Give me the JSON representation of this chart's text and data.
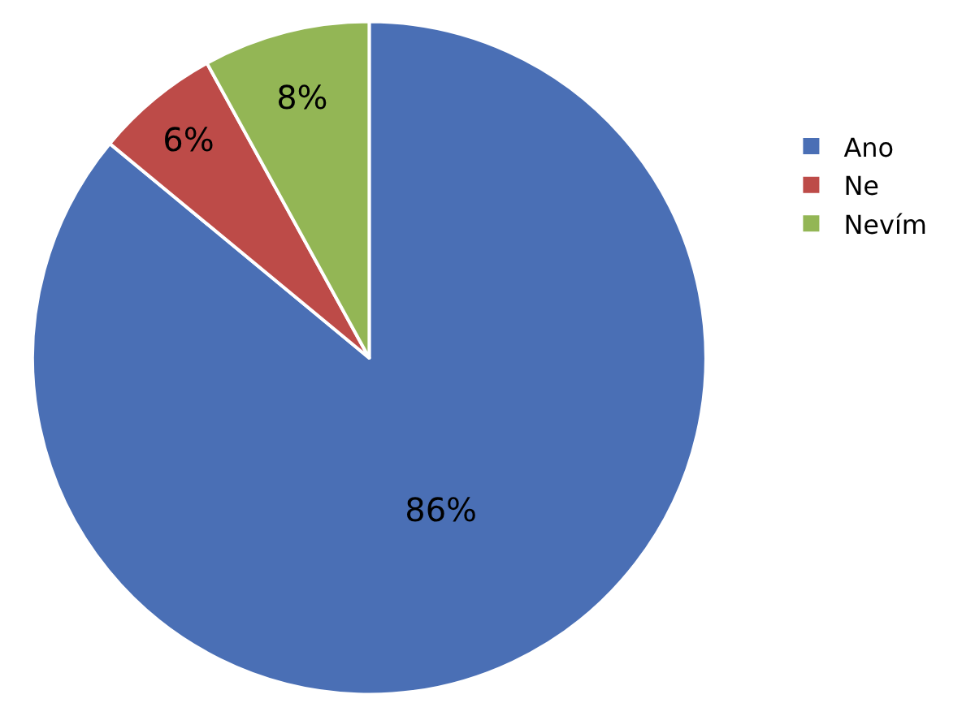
{
  "chart_data": {
    "type": "pie",
    "categories": [
      "Ano",
      "Ne",
      "Nevím"
    ],
    "values": [
      86,
      6,
      8
    ],
    "colors": [
      "#4a6fb5",
      "#bd4b48",
      "#93b655"
    ],
    "value_labels": [
      "86%",
      "6%",
      "8%"
    ],
    "legend": "right"
  }
}
